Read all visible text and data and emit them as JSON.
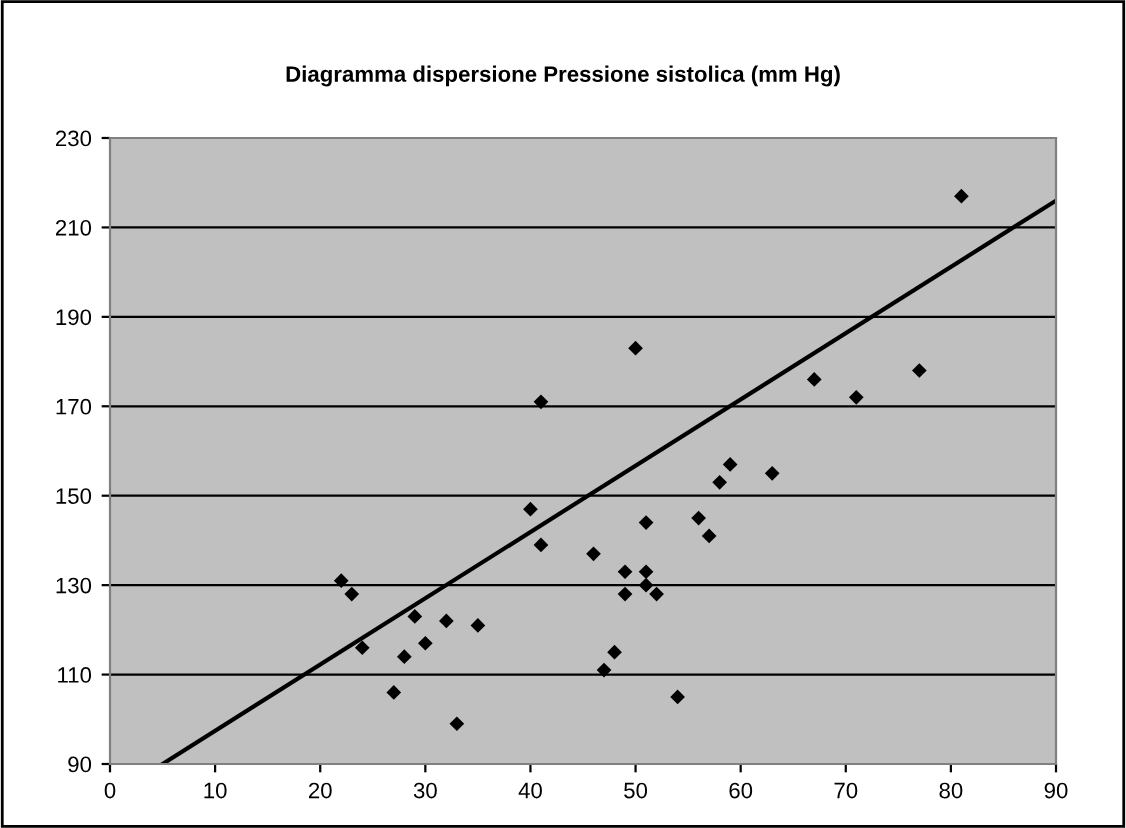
{
  "chart_data": {
    "type": "scatter",
    "title": "Diagramma dispersione Pressione sistolica (mm Hg)",
    "xlim": [
      0,
      90
    ],
    "xticks": [
      0,
      10,
      20,
      30,
      40,
      50,
      60,
      70,
      80,
      90
    ],
    "ylim": [
      90,
      230
    ],
    "yticks": [
      90,
      110,
      130,
      150,
      170,
      190,
      210,
      230
    ],
    "grid": "y",
    "marker": "diamond",
    "legend": false,
    "series": [
      {
        "type": "scatter",
        "color": "#000000",
        "x": [
          22,
          23,
          24,
          27,
          28,
          29,
          30,
          32,
          33,
          35,
          40,
          41,
          41,
          46,
          47,
          48,
          49,
          49,
          50,
          51,
          51,
          51,
          52,
          54,
          56,
          57,
          58,
          59,
          63,
          67,
          71,
          77,
          81
        ],
        "values": [
          131,
          128,
          116,
          106,
          114,
          123,
          117,
          122,
          99,
          121,
          147,
          139,
          171,
          137,
          111,
          115,
          128,
          133,
          183,
          133,
          130,
          144,
          128,
          105,
          145,
          141,
          153,
          157,
          155,
          176,
          172,
          178,
          217
        ]
      },
      {
        "type": "line",
        "color": "#000000",
        "line_style": "solid",
        "marker": "none",
        "x": [
          5,
          90
        ],
        "values": [
          90,
          216
        ]
      }
    ]
  }
}
